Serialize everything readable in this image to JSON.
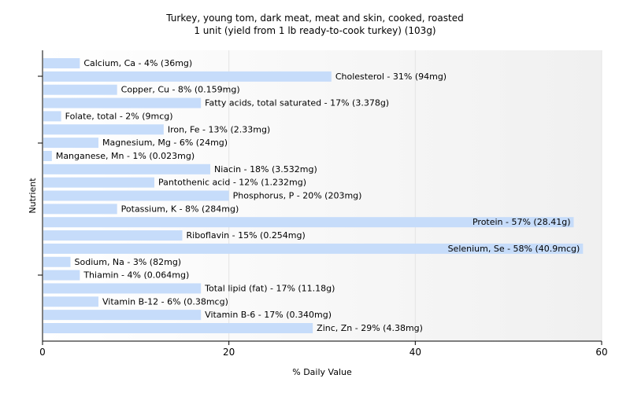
{
  "chart_data": {
    "type": "bar",
    "orientation": "horizontal",
    "title": "Turkey, young tom, dark meat, meat and skin, cooked, roasted",
    "subtitle": "1 unit (yield from 1 lb ready-to-cook turkey) (103g)",
    "xlabel": "% Daily Value",
    "ylabel": "Nutrient",
    "xlim": [
      0,
      60
    ],
    "xticks": [
      0,
      20,
      40,
      60
    ],
    "grid": true,
    "bar_color": "#c6dcfa",
    "categories": [
      "Calcium, Ca",
      "Cholesterol",
      "Copper, Cu",
      "Fatty acids, total saturated",
      "Folate, total",
      "Iron, Fe",
      "Magnesium, Mg",
      "Manganese, Mn",
      "Niacin",
      "Pantothenic acid",
      "Phosphorus, P",
      "Potassium, K",
      "Protein",
      "Riboflavin",
      "Selenium, Se",
      "Sodium, Na",
      "Thiamin",
      "Total lipid (fat)",
      "Vitamin B-12",
      "Vitamin B-6",
      "Zinc, Zn"
    ],
    "values": [
      4,
      31,
      8,
      17,
      2,
      13,
      6,
      1,
      18,
      12,
      20,
      8,
      57,
      15,
      58,
      3,
      4,
      17,
      6,
      17,
      29
    ],
    "labels": [
      "Calcium, Ca - 4% (36mg)",
      "Cholesterol - 31% (94mg)",
      "Copper, Cu - 8% (0.159mg)",
      "Fatty acids, total saturated - 17% (3.378g)",
      "Folate, total - 2% (9mcg)",
      "Iron, Fe - 13% (2.33mg)",
      "Magnesium, Mg - 6% (24mg)",
      "Manganese, Mn - 1% (0.023mg)",
      "Niacin - 18% (3.532mg)",
      "Pantothenic acid - 12% (1.232mg)",
      "Phosphorus, P - 20% (203mg)",
      "Potassium, K - 8% (284mg)",
      "Protein - 57% (28.41g)",
      "Riboflavin - 15% (0.254mg)",
      "Selenium, Se - 58% (40.9mcg)",
      "Sodium, Na - 3% (82mg)",
      "Thiamin - 4% (0.064mg)",
      "Total lipid (fat) - 17% (11.18g)",
      "Vitamin B-12 - 6% (0.38mcg)",
      "Vitamin B-6 - 17% (0.340mg)",
      "Zinc, Zn - 29% (4.38mg)"
    ]
  }
}
